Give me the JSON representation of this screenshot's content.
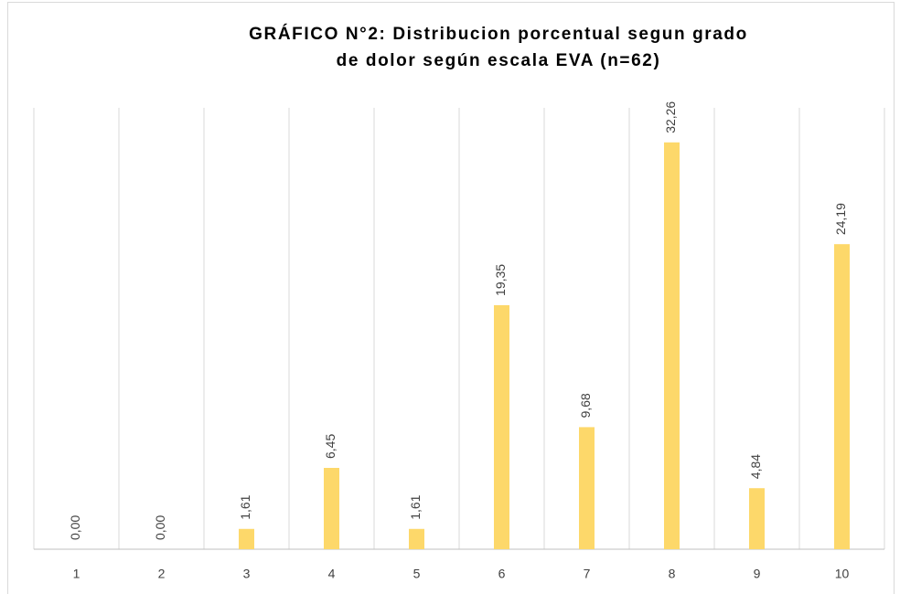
{
  "chart_data": {
    "type": "bar",
    "title": [
      "GRÁFICO N°2: Distribucion porcentual segun grado",
      "de dolor según escala EVA (n=62)"
    ],
    "categories": [
      "1",
      "2",
      "3",
      "4",
      "5",
      "6",
      "7",
      "8",
      "9",
      "10"
    ],
    "values": [
      0,
      0,
      1.61,
      6.45,
      1.61,
      19.35,
      9.68,
      32.26,
      4.84,
      24.19
    ],
    "value_labels": [
      "0,00",
      "0,00",
      "1,61",
      "6,45",
      "1,61",
      "19,35",
      "9,68",
      "32,26",
      "4,84",
      "24,19"
    ],
    "color": "#fdd86a",
    "ylim": [
      0,
      35
    ]
  }
}
